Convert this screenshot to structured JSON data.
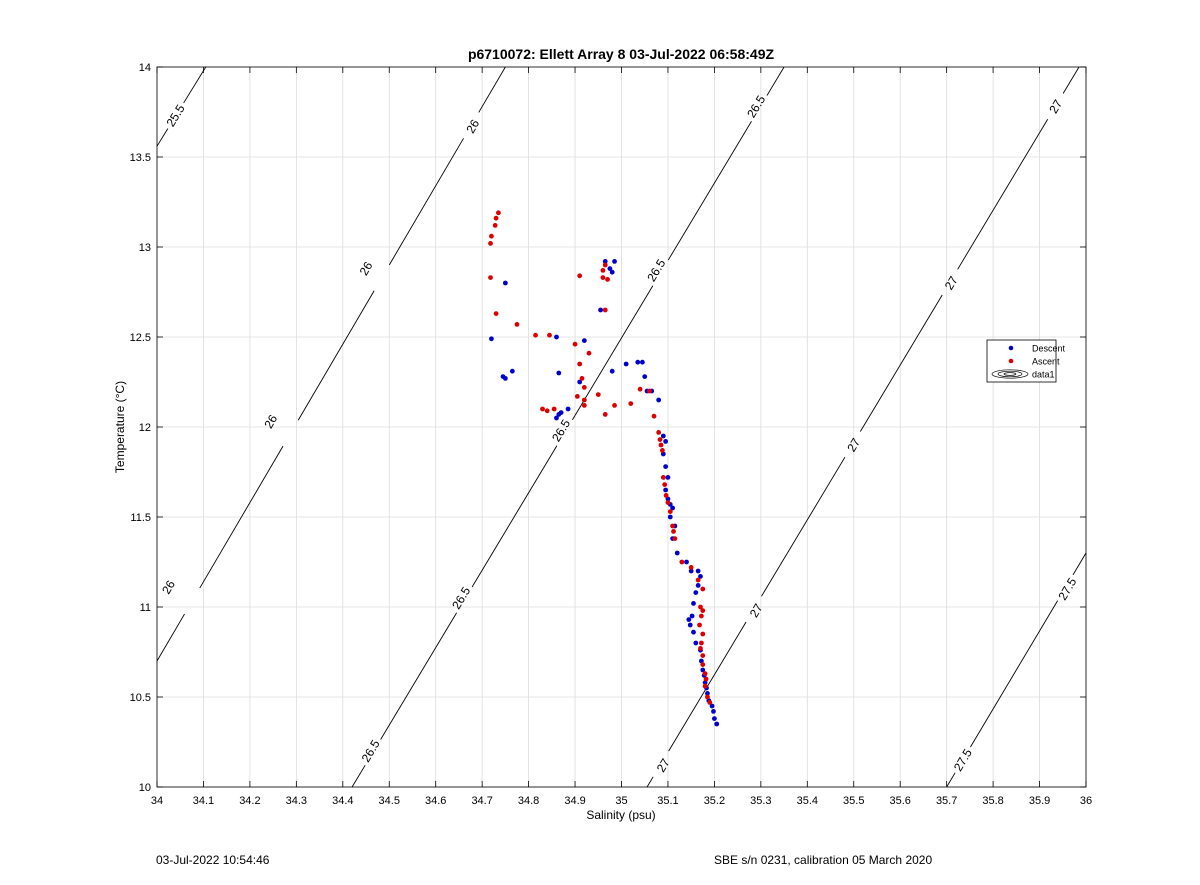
{
  "chart_data": {
    "type": "scatter",
    "title": "p6710072: Ellett Array 8 03-Jul-2022 06:58:49Z",
    "xlabel": "Salinity (psu)",
    "ylabel": "Temperature (°C)",
    "xlim": [
      34,
      36
    ],
    "ylim": [
      10,
      14
    ],
    "xticks": [
      "34",
      "34.1",
      "34.2",
      "34.3",
      "34.4",
      "34.5",
      "34.6",
      "34.7",
      "34.8",
      "34.9",
      "35",
      "35.1",
      "35.2",
      "35.3",
      "35.4",
      "35.5",
      "35.6",
      "35.7",
      "35.8",
      "35.9",
      "36"
    ],
    "yticks": [
      "10",
      "10.5",
      "11",
      "11.5",
      "12",
      "12.5",
      "13",
      "13.5",
      "14"
    ],
    "grid": true,
    "legend_placement": "right",
    "legend": [
      "Descent",
      "Ascent",
      "data1"
    ],
    "colors": {
      "descent": "#0000cc",
      "ascent": "#dd0000",
      "contour": "#000000",
      "grid": "#dcdcdc"
    },
    "contours": [
      {
        "level": "25.5",
        "points": [
          [
            34,
            13.56
          ],
          [
            34.105,
            14
          ]
        ],
        "labels": [
          [
            34.04,
            13.73
          ]
        ]
      },
      {
        "level": "26",
        "points": [
          [
            34,
            10.7
          ],
          [
            34.75,
            14
          ]
        ],
        "labels": [
          [
            34.025,
            11.11
          ],
          [
            34.245,
            12.03
          ],
          [
            34.45,
            12.88
          ],
          [
            34.68,
            13.67
          ]
        ]
      },
      {
        "level": "26.5",
        "points": [
          [
            34.42,
            10
          ],
          [
            35.35,
            14
          ]
        ],
        "labels": [
          [
            34.46,
            10.2
          ],
          [
            34.655,
            11.05
          ],
          [
            34.87,
            11.98
          ],
          [
            35.075,
            12.87
          ],
          [
            35.29,
            13.78
          ]
        ]
      },
      {
        "level": "27",
        "points": [
          [
            35.055,
            10
          ],
          [
            35.985,
            14
          ]
        ],
        "labels": [
          [
            35.09,
            10.12
          ],
          [
            35.29,
            10.98
          ],
          [
            35.5,
            11.9
          ],
          [
            35.71,
            12.8
          ],
          [
            35.935,
            13.78
          ]
        ]
      },
      {
        "level": "27.5",
        "points": [
          [
            35.7,
            10
          ],
          [
            36,
            11.3
          ]
        ],
        "labels": [
          [
            35.735,
            10.15
          ],
          [
            35.96,
            11.1
          ]
        ]
      }
    ],
    "series": [
      {
        "name": "Descent",
        "points": [
          [
            34.965,
            12.92
          ],
          [
            34.975,
            12.88
          ],
          [
            34.985,
            12.92
          ],
          [
            34.98,
            12.86
          ],
          [
            34.955,
            12.65
          ],
          [
            34.75,
            12.8
          ],
          [
            34.72,
            12.49
          ],
          [
            34.745,
            12.28
          ],
          [
            34.765,
            12.31
          ],
          [
            34.75,
            12.27
          ],
          [
            34.86,
            12.5
          ],
          [
            34.865,
            12.3
          ],
          [
            34.92,
            12.48
          ],
          [
            34.98,
            12.31
          ],
          [
            35.01,
            12.35
          ],
          [
            35.035,
            12.36
          ],
          [
            35.045,
            12.36
          ],
          [
            35.05,
            12.28
          ],
          [
            35.055,
            12.2
          ],
          [
            35.065,
            12.2
          ],
          [
            34.91,
            12.25
          ],
          [
            34.885,
            12.1
          ],
          [
            34.865,
            12.07
          ],
          [
            34.86,
            12.05
          ],
          [
            34.87,
            12.08
          ],
          [
            35.08,
            12.15
          ],
          [
            35.09,
            11.95
          ],
          [
            35.095,
            11.92
          ],
          [
            35.09,
            11.85
          ],
          [
            35.095,
            11.78
          ],
          [
            35.1,
            11.72
          ],
          [
            35.095,
            11.65
          ],
          [
            35.1,
            11.6
          ],
          [
            35.105,
            11.57
          ],
          [
            35.11,
            11.55
          ],
          [
            35.105,
            11.5
          ],
          [
            35.115,
            11.45
          ],
          [
            35.11,
            11.38
          ],
          [
            35.12,
            11.3
          ],
          [
            35.14,
            11.25
          ],
          [
            35.15,
            11.2
          ],
          [
            35.165,
            11.2
          ],
          [
            35.17,
            11.17
          ],
          [
            35.165,
            11.12
          ],
          [
            35.16,
            11.08
          ],
          [
            35.155,
            11.02
          ],
          [
            35.152,
            10.95
          ],
          [
            35.145,
            10.93
          ],
          [
            35.148,
            10.9
          ],
          [
            35.155,
            10.86
          ],
          [
            35.16,
            10.8
          ],
          [
            35.17,
            10.76
          ],
          [
            35.172,
            10.7
          ],
          [
            35.175,
            10.65
          ],
          [
            35.178,
            10.62
          ],
          [
            35.18,
            10.58
          ],
          [
            35.183,
            10.55
          ],
          [
            35.185,
            10.52
          ],
          [
            35.188,
            10.48
          ],
          [
            35.195,
            10.45
          ],
          [
            35.198,
            10.42
          ],
          [
            35.2,
            10.38
          ],
          [
            35.205,
            10.35
          ]
        ]
      },
      {
        "name": "Ascent",
        "points": [
          [
            34.735,
            13.19
          ],
          [
            34.73,
            13.16
          ],
          [
            34.728,
            13.12
          ],
          [
            34.72,
            13.06
          ],
          [
            34.718,
            13.02
          ],
          [
            34.718,
            12.83
          ],
          [
            34.73,
            12.63
          ],
          [
            34.91,
            12.84
          ],
          [
            34.965,
            12.9
          ],
          [
            34.96,
            12.87
          ],
          [
            34.96,
            12.83
          ],
          [
            34.97,
            12.82
          ],
          [
            34.965,
            12.65
          ],
          [
            34.775,
            12.57
          ],
          [
            34.815,
            12.51
          ],
          [
            34.845,
            12.51
          ],
          [
            34.9,
            12.46
          ],
          [
            34.93,
            12.41
          ],
          [
            34.91,
            12.35
          ],
          [
            34.915,
            12.27
          ],
          [
            34.92,
            12.22
          ],
          [
            34.905,
            12.17
          ],
          [
            34.92,
            12.15
          ],
          [
            34.92,
            12.12
          ],
          [
            34.95,
            12.18
          ],
          [
            34.985,
            12.12
          ],
          [
            35.02,
            12.13
          ],
          [
            35.04,
            12.21
          ],
          [
            35.06,
            12.2
          ],
          [
            35.07,
            12.06
          ],
          [
            34.965,
            12.07
          ],
          [
            34.83,
            12.1
          ],
          [
            34.84,
            12.09
          ],
          [
            34.855,
            12.1
          ],
          [
            35.08,
            11.97
          ],
          [
            35.083,
            11.93
          ],
          [
            35.085,
            11.9
          ],
          [
            35.088,
            11.87
          ],
          [
            35.09,
            11.72
          ],
          [
            35.093,
            11.68
          ],
          [
            35.096,
            11.62
          ],
          [
            35.1,
            11.58
          ],
          [
            35.105,
            11.53
          ],
          [
            35.11,
            11.45
          ],
          [
            35.112,
            11.42
          ],
          [
            35.115,
            11.38
          ],
          [
            35.13,
            11.25
          ],
          [
            35.15,
            11.22
          ],
          [
            35.165,
            11.15
          ],
          [
            35.175,
            11.1
          ],
          [
            35.17,
            11.0
          ],
          [
            35.175,
            10.98
          ],
          [
            35.172,
            10.95
          ],
          [
            35.168,
            10.9
          ],
          [
            35.175,
            10.85
          ],
          [
            35.172,
            10.8
          ],
          [
            35.17,
            10.77
          ],
          [
            35.175,
            10.73
          ],
          [
            35.175,
            10.68
          ],
          [
            35.18,
            10.63
          ],
          [
            35.182,
            10.6
          ],
          [
            35.18,
            10.56
          ],
          [
            35.185,
            10.5
          ],
          [
            35.19,
            10.47
          ]
        ]
      }
    ]
  },
  "footer": {
    "left": "03-Jul-2022 10:54:46",
    "right": "SBE s/n 0231, calibration 05 March 2020"
  }
}
